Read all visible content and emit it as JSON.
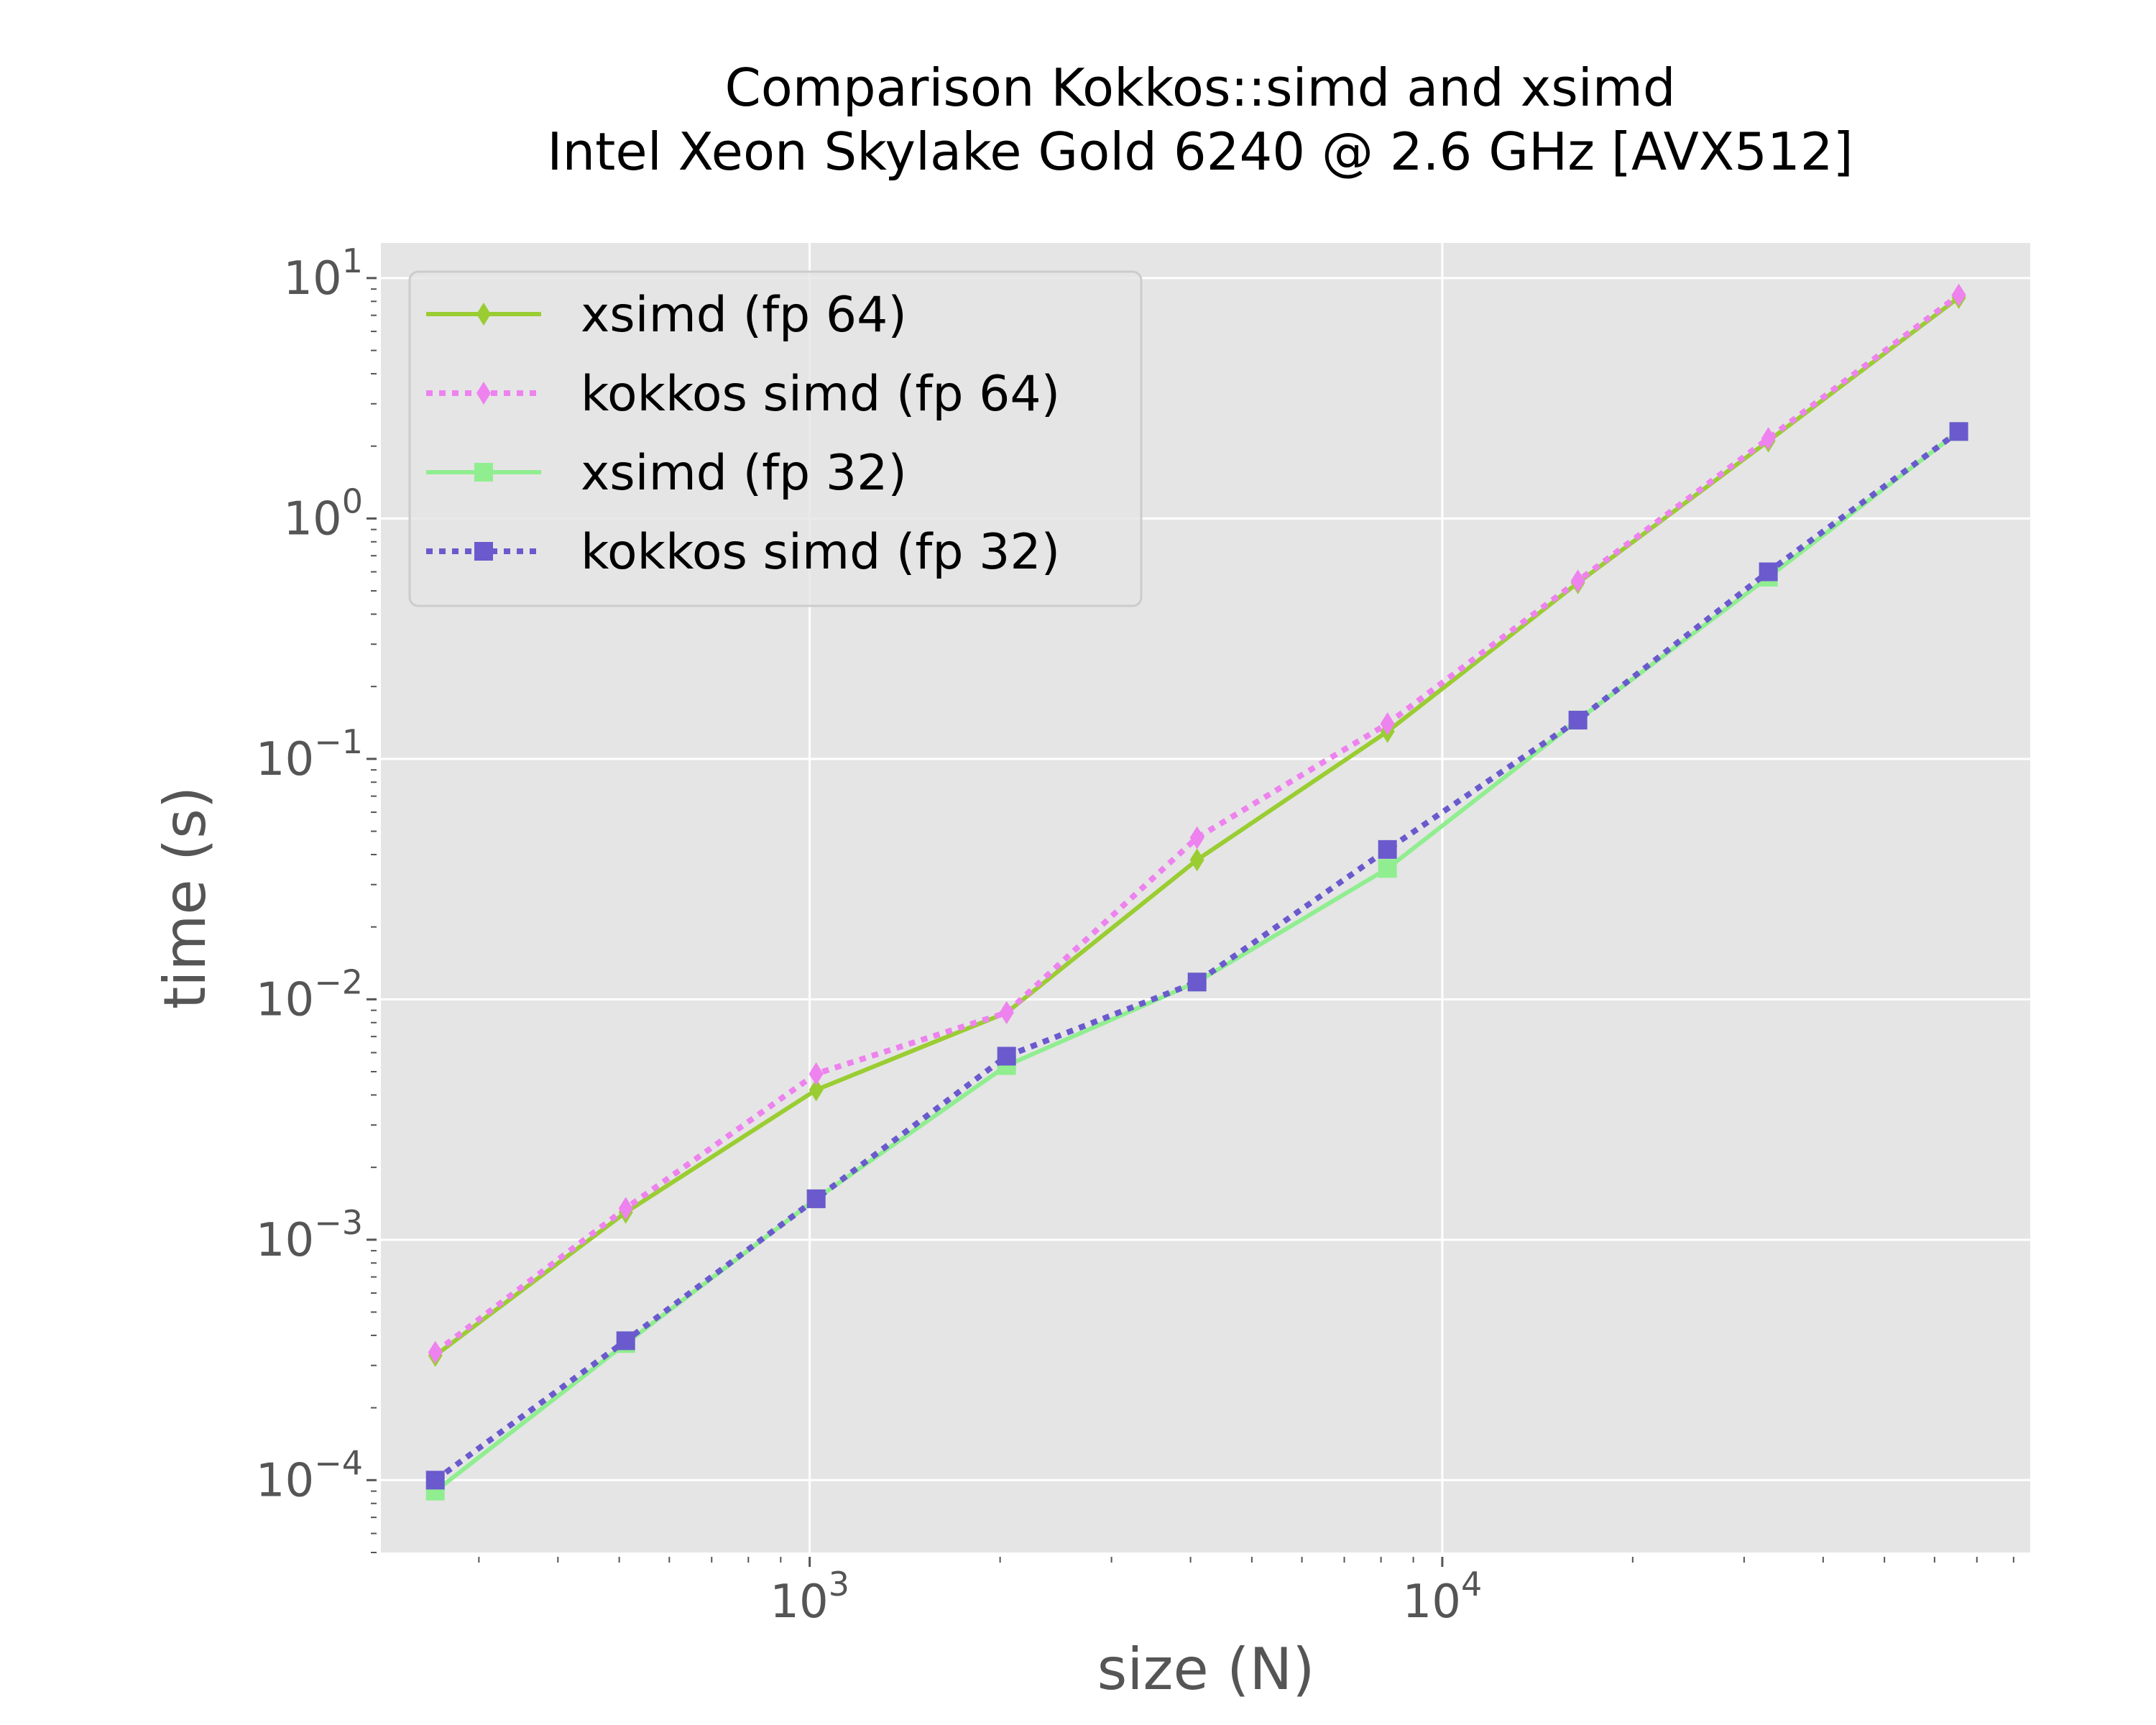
{
  "chart_data": {
    "type": "line",
    "title_lines": [
      "Comparison Kokkos::simd and xsimd",
      "Intel Xeon Skylake Gold 6240 @ 2.6 GHz [AVX512]"
    ],
    "xlabel": "size (N)",
    "ylabel": "time (s)",
    "xscale": "log",
    "yscale": "log",
    "xlim": [
      210,
      85000
    ],
    "ylim": [
      5e-05,
      14
    ],
    "x_ticks": [
      {
        "base": "10",
        "exp": "3",
        "value": 1000
      },
      {
        "base": "10",
        "exp": "4",
        "value": 10000
      }
    ],
    "y_ticks": [
      {
        "base": "10",
        "exp": "1",
        "value": 10
      },
      {
        "base": "10",
        "exp": "0",
        "value": 1
      },
      {
        "base": "10",
        "exp": "−1",
        "value": 0.1
      },
      {
        "base": "10",
        "exp": "−2",
        "value": 0.01
      },
      {
        "base": "10",
        "exp": "−3",
        "value": 0.001
      },
      {
        "base": "10",
        "exp": "−4",
        "value": 0.0001
      }
    ],
    "grid": true,
    "legend_position": "top-left",
    "background": "#e5e5e5",
    "x": [
      256,
      512,
      1024,
      2048,
      4096,
      8192,
      16384,
      32768,
      65536
    ],
    "series": [
      {
        "name": "xsimd (fp 64)",
        "color": "#9acd32",
        "dash": "solid",
        "marker": "diamond",
        "values": [
          0.00033,
          0.0013,
          0.0042,
          0.0088,
          0.038,
          0.13,
          0.54,
          2.1,
          8.3
        ]
      },
      {
        "name": "kokkos simd (fp 64)",
        "color": "#ee82ee",
        "dash": "dotted",
        "marker": "diamond",
        "values": [
          0.00034,
          0.00135,
          0.0049,
          0.0088,
          0.047,
          0.14,
          0.55,
          2.15,
          8.5
        ]
      },
      {
        "name": "xsimd (fp 32)",
        "color": "#90ee90",
        "dash": "solid",
        "marker": "square",
        "values": [
          9e-05,
          0.00037,
          0.00148,
          0.0053,
          0.0118,
          0.035,
          0.145,
          0.57,
          2.3
        ]
      },
      {
        "name": "kokkos simd (fp 32)",
        "color": "#6a5acd",
        "dash": "dotted",
        "marker": "square",
        "values": [
          0.0001,
          0.00038,
          0.00148,
          0.0058,
          0.0118,
          0.042,
          0.145,
          0.6,
          2.3
        ]
      }
    ]
  }
}
